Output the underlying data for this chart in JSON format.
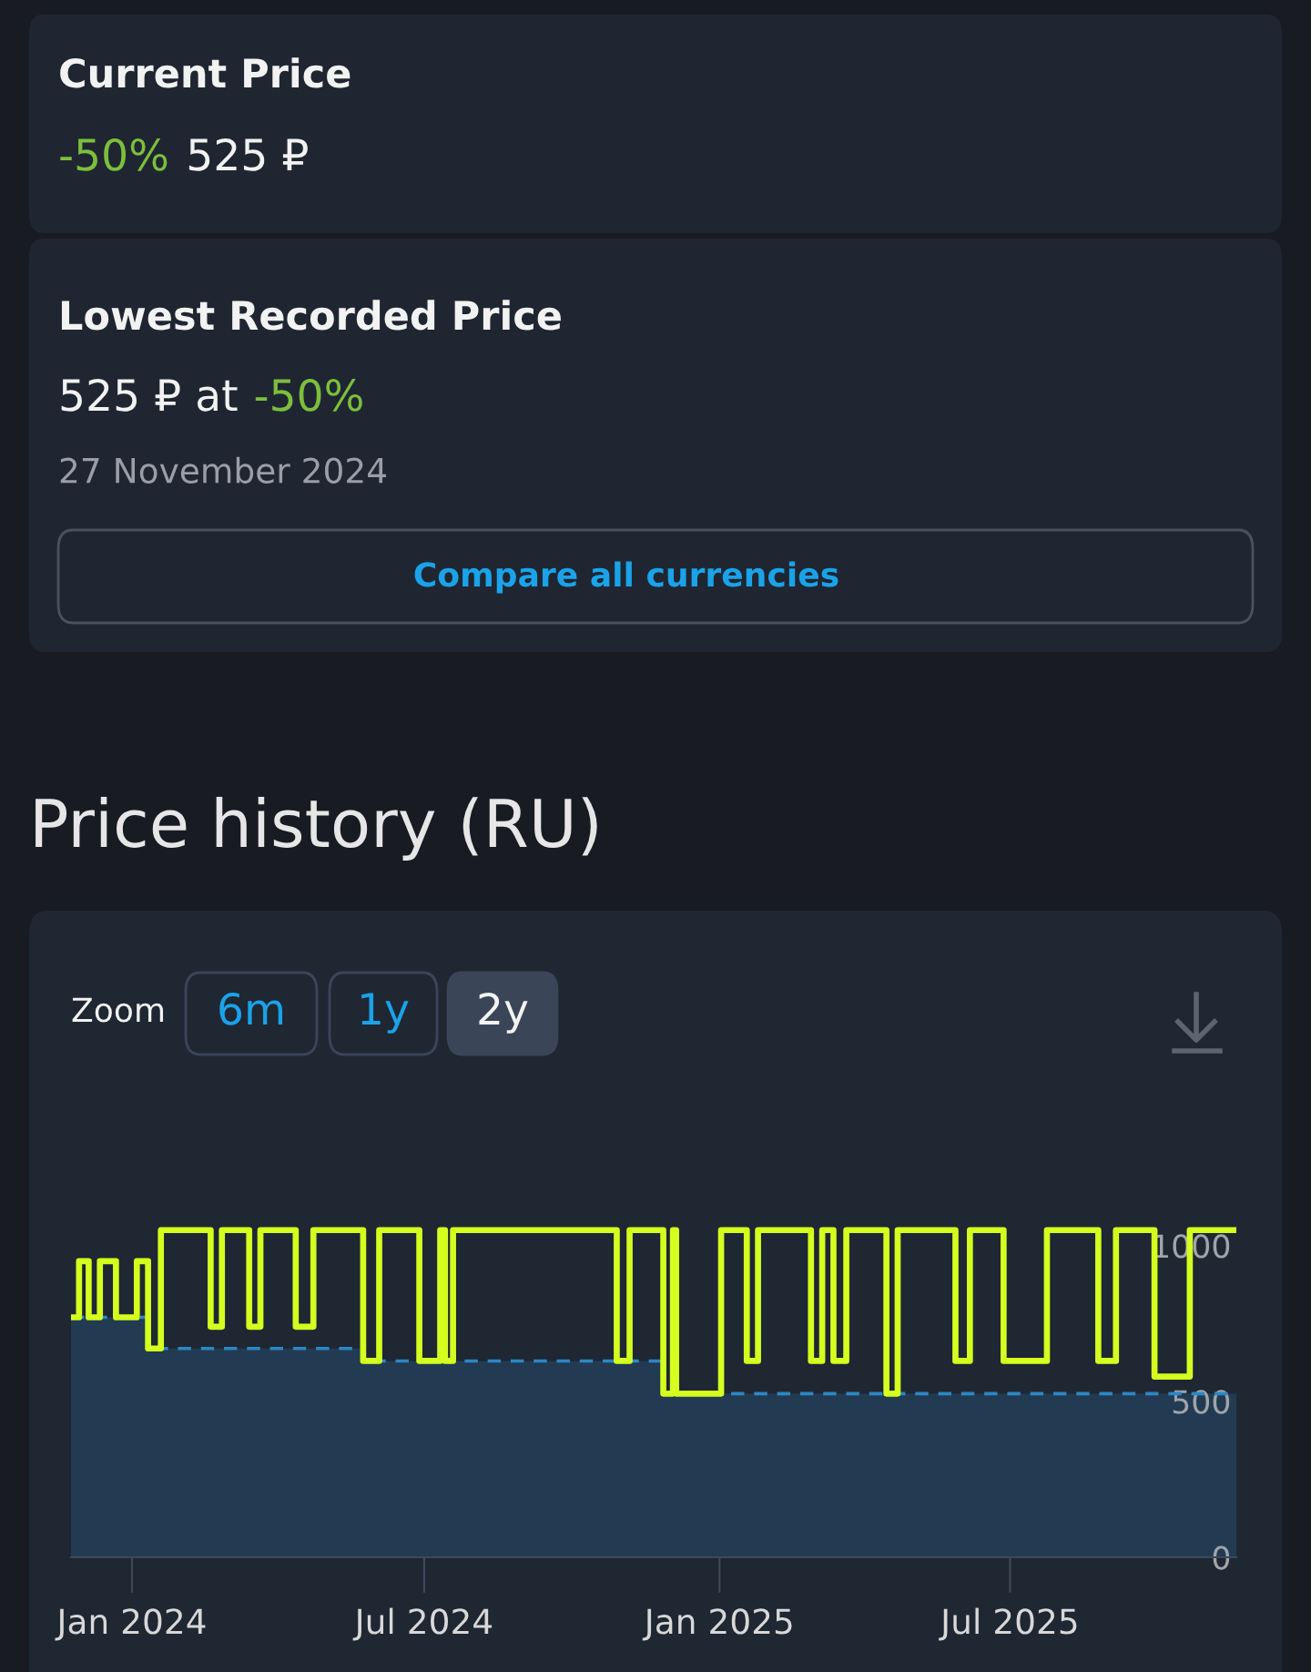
{
  "chart_data": [
    {
      "type": "other",
      "title": "Current Price",
      "annotations": [
        "-50%",
        "525 ₽"
      ]
    },
    {
      "type": "other",
      "title": "Lowest Recorded Price",
      "annotations": [
        "525 ₽ at",
        "-50%",
        "27 November 2024",
        "Compare all currencies"
      ]
    },
    {
      "type": "step",
      "title": "Price history (RU)",
      "annotations": [
        "Zoom",
        "6m",
        "1y",
        "2y"
      ],
      "xlim": [
        "2023-11-24",
        "2025-11-19"
      ],
      "ylim": [
        0,
        2075
      ],
      "xticks": [
        {
          "value": "2024-01-01",
          "label": "Jan 2024"
        },
        {
          "value": "2024-07-01",
          "label": "Jul 2024"
        },
        {
          "value": "2025-01-01",
          "label": "Jan 2025"
        },
        {
          "value": "2025-07-01",
          "label": "Jul 2025"
        }
      ],
      "yticks": [
        0,
        500,
        1000
      ],
      "grid": false,
      "series": [
        {
          "type": "area",
          "color": "#2d86c4",
          "line_style": "dashed",
          "x": [
            "2023-11-24",
            "2024-01-11",
            "2024-01-11",
            "2024-05-24",
            "2024-05-24",
            "2024-11-27",
            "2024-11-27",
            "2025-11-19"
          ],
          "values": [
            770,
            770,
            670,
            670,
            630,
            630,
            525,
            525
          ]
        },
        {
          "type": "step",
          "color": "#d4ff1f",
          "line_style": "solid",
          "x": [
            "2023-11-24",
            "2023-11-29",
            "2023-12-05",
            "2023-12-12",
            "2023-12-22",
            "2024-01-04",
            "2024-01-11",
            "2024-01-19",
            "2024-02-19",
            "2024-02-26",
            "2024-03-14",
            "2024-03-21",
            "2024-04-12",
            "2024-04-23",
            "2024-05-24",
            "2024-06-03",
            "2024-06-28",
            "2024-07-11",
            "2024-07-14",
            "2024-07-19",
            "2024-10-29",
            "2024-11-06",
            "2024-11-27",
            "2024-12-03",
            "2024-12-05",
            "2025-01-02",
            "2025-01-18",
            "2025-01-25",
            "2025-02-27",
            "2025-03-06",
            "2025-03-13",
            "2025-03-21",
            "2025-04-15",
            "2025-04-22",
            "2025-05-28",
            "2025-06-06",
            "2025-06-27",
            "2025-07-24",
            "2025-08-25",
            "2025-09-05",
            "2025-09-29",
            "2025-10-21",
            "2025-11-19"
          ],
          "values": [
            770,
            950,
            770,
            950,
            770,
            950,
            670,
            1050,
            740,
            1050,
            740,
            1050,
            740,
            1050,
            630,
            1050,
            630,
            1050,
            630,
            1050,
            630,
            1050,
            525,
            1050,
            525,
            1050,
            630,
            1050,
            630,
            1050,
            630,
            1050,
            525,
            1050,
            630,
            1050,
            630,
            1050,
            630,
            1050,
            580,
            1050,
            1050
          ]
        }
      ]
    }
  ]
}
